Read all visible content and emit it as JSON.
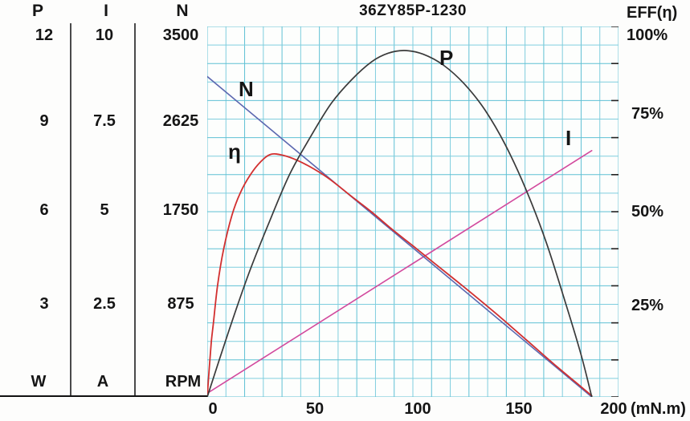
{
  "title": "36ZY85P-1230",
  "left_table": {
    "columns": [
      {
        "header": "P",
        "values": [
          "12",
          "9",
          "6",
          "3"
        ],
        "unit": "W"
      },
      {
        "header": "I",
        "values": [
          "10",
          "7.5",
          "5",
          "2.5"
        ],
        "unit": "A"
      },
      {
        "header": "N",
        "values": [
          "3500",
          "2625",
          "1750",
          "875"
        ],
        "unit": "RPM"
      }
    ]
  },
  "right_axis": {
    "title": "EFF(η)",
    "labels": [
      "100%",
      "75%",
      "50%",
      "25%"
    ]
  },
  "x_axis_labels": {
    "tick_labels": [
      "0",
      "50",
      "100",
      "150",
      "200"
    ],
    "unit_label": "(mN.m)"
  },
  "curve_labels": {
    "N": "N",
    "P": "P",
    "I": "I",
    "eta": "η"
  },
  "colors": {
    "grid": "#7fcede",
    "grid_dark": "#5fc0d4",
    "speed_line": "#5c68b0",
    "current_line": "#d2499d",
    "efficiency_line": "#d22f2f",
    "power_line": "#3a3a3a",
    "tick": "#222222",
    "text": "#151515"
  },
  "chart_data": {
    "type": "line",
    "title": "36ZY85P-1230",
    "grid": true,
    "x_axis": {
      "label": "(mN.m)",
      "min": 0,
      "max": 200,
      "ticks": [
        0,
        50,
        100,
        150,
        200
      ]
    },
    "y_axes": [
      {
        "name": "P",
        "unit": "W",
        "full_scale": 12,
        "ticks": [
          3,
          6,
          9,
          12
        ]
      },
      {
        "name": "I",
        "unit": "A",
        "full_scale": 10,
        "ticks": [
          2.5,
          5,
          7.5,
          10
        ]
      },
      {
        "name": "N",
        "unit": "RPM",
        "full_scale": 3500,
        "ticks": [
          875,
          1750,
          2625,
          3500
        ]
      },
      {
        "name": "EFF",
        "unit": "%",
        "full_scale": 100,
        "ticks": [
          25,
          50,
          75,
          100
        ]
      }
    ],
    "note": "points_pct are [torque mN.m, percent of full scale]; multiply pct by full_scale/100 for native units",
    "series": [
      {
        "key": "I",
        "label": "I",
        "unit": "A",
        "full_scale": 10,
        "points_pct": [
          [
            0,
            1
          ],
          [
            187,
            66.5
          ]
        ]
      },
      {
        "key": "N",
        "label": "N",
        "unit": "RPM",
        "full_scale": 3500,
        "points_pct": [
          [
            0,
            86.5
          ],
          [
            187,
            0
          ]
        ]
      },
      {
        "key": "eta",
        "label": "η",
        "unit": "%",
        "full_scale": 100,
        "points_pct": [
          [
            0,
            0
          ],
          [
            1,
            8
          ],
          [
            2,
            15
          ],
          [
            3,
            20
          ],
          [
            5,
            30
          ],
          [
            8,
            40
          ],
          [
            12,
            49
          ],
          [
            16,
            55
          ],
          [
            21,
            60
          ],
          [
            26,
            63.5
          ],
          [
            31,
            65.5
          ],
          [
            37,
            65.2
          ],
          [
            44,
            63.8
          ],
          [
            52,
            61.5
          ],
          [
            60,
            58.6
          ],
          [
            70,
            54.2
          ],
          [
            80,
            49.9
          ],
          [
            90,
            45.2
          ],
          [
            100,
            40.8
          ],
          [
            110,
            36.3
          ],
          [
            125,
            29.6
          ],
          [
            140,
            22.7
          ],
          [
            155,
            15.5
          ],
          [
            170,
            8.2
          ],
          [
            180,
            3.6
          ],
          [
            187,
            0.3
          ]
        ]
      },
      {
        "key": "P",
        "label": "P",
        "unit": "W",
        "full_scale": 12,
        "points_pct": [
          [
            0,
            0
          ],
          [
            10,
            17
          ],
          [
            20,
            33
          ],
          [
            30,
            47
          ],
          [
            40,
            60
          ],
          [
            50,
            70
          ],
          [
            60,
            79
          ],
          [
            70,
            85.5
          ],
          [
            80,
            90.5
          ],
          [
            88,
            92.8
          ],
          [
            96,
            93.5
          ],
          [
            105,
            92.5
          ],
          [
            115,
            89.5
          ],
          [
            125,
            84.5
          ],
          [
            135,
            77.5
          ],
          [
            145,
            68
          ],
          [
            155,
            56
          ],
          [
            165,
            41.5
          ],
          [
            175,
            24
          ],
          [
            182,
            11
          ],
          [
            187,
            0
          ]
        ]
      }
    ],
    "key_points": {
      "no_load_speed_rpm": 3030,
      "no_load_current_a": 0.1,
      "stall_torque_mnm": 187,
      "stall_current_a": 6.7,
      "max_output_power_w": 11.2,
      "max_power_torque_mnm": 96,
      "max_efficiency_pct": 65.5,
      "max_efficiency_torque_mnm": 30
    }
  },
  "layout_hints": {
    "legend": "inline curve labels",
    "grid_cells": "22 x 20"
  }
}
